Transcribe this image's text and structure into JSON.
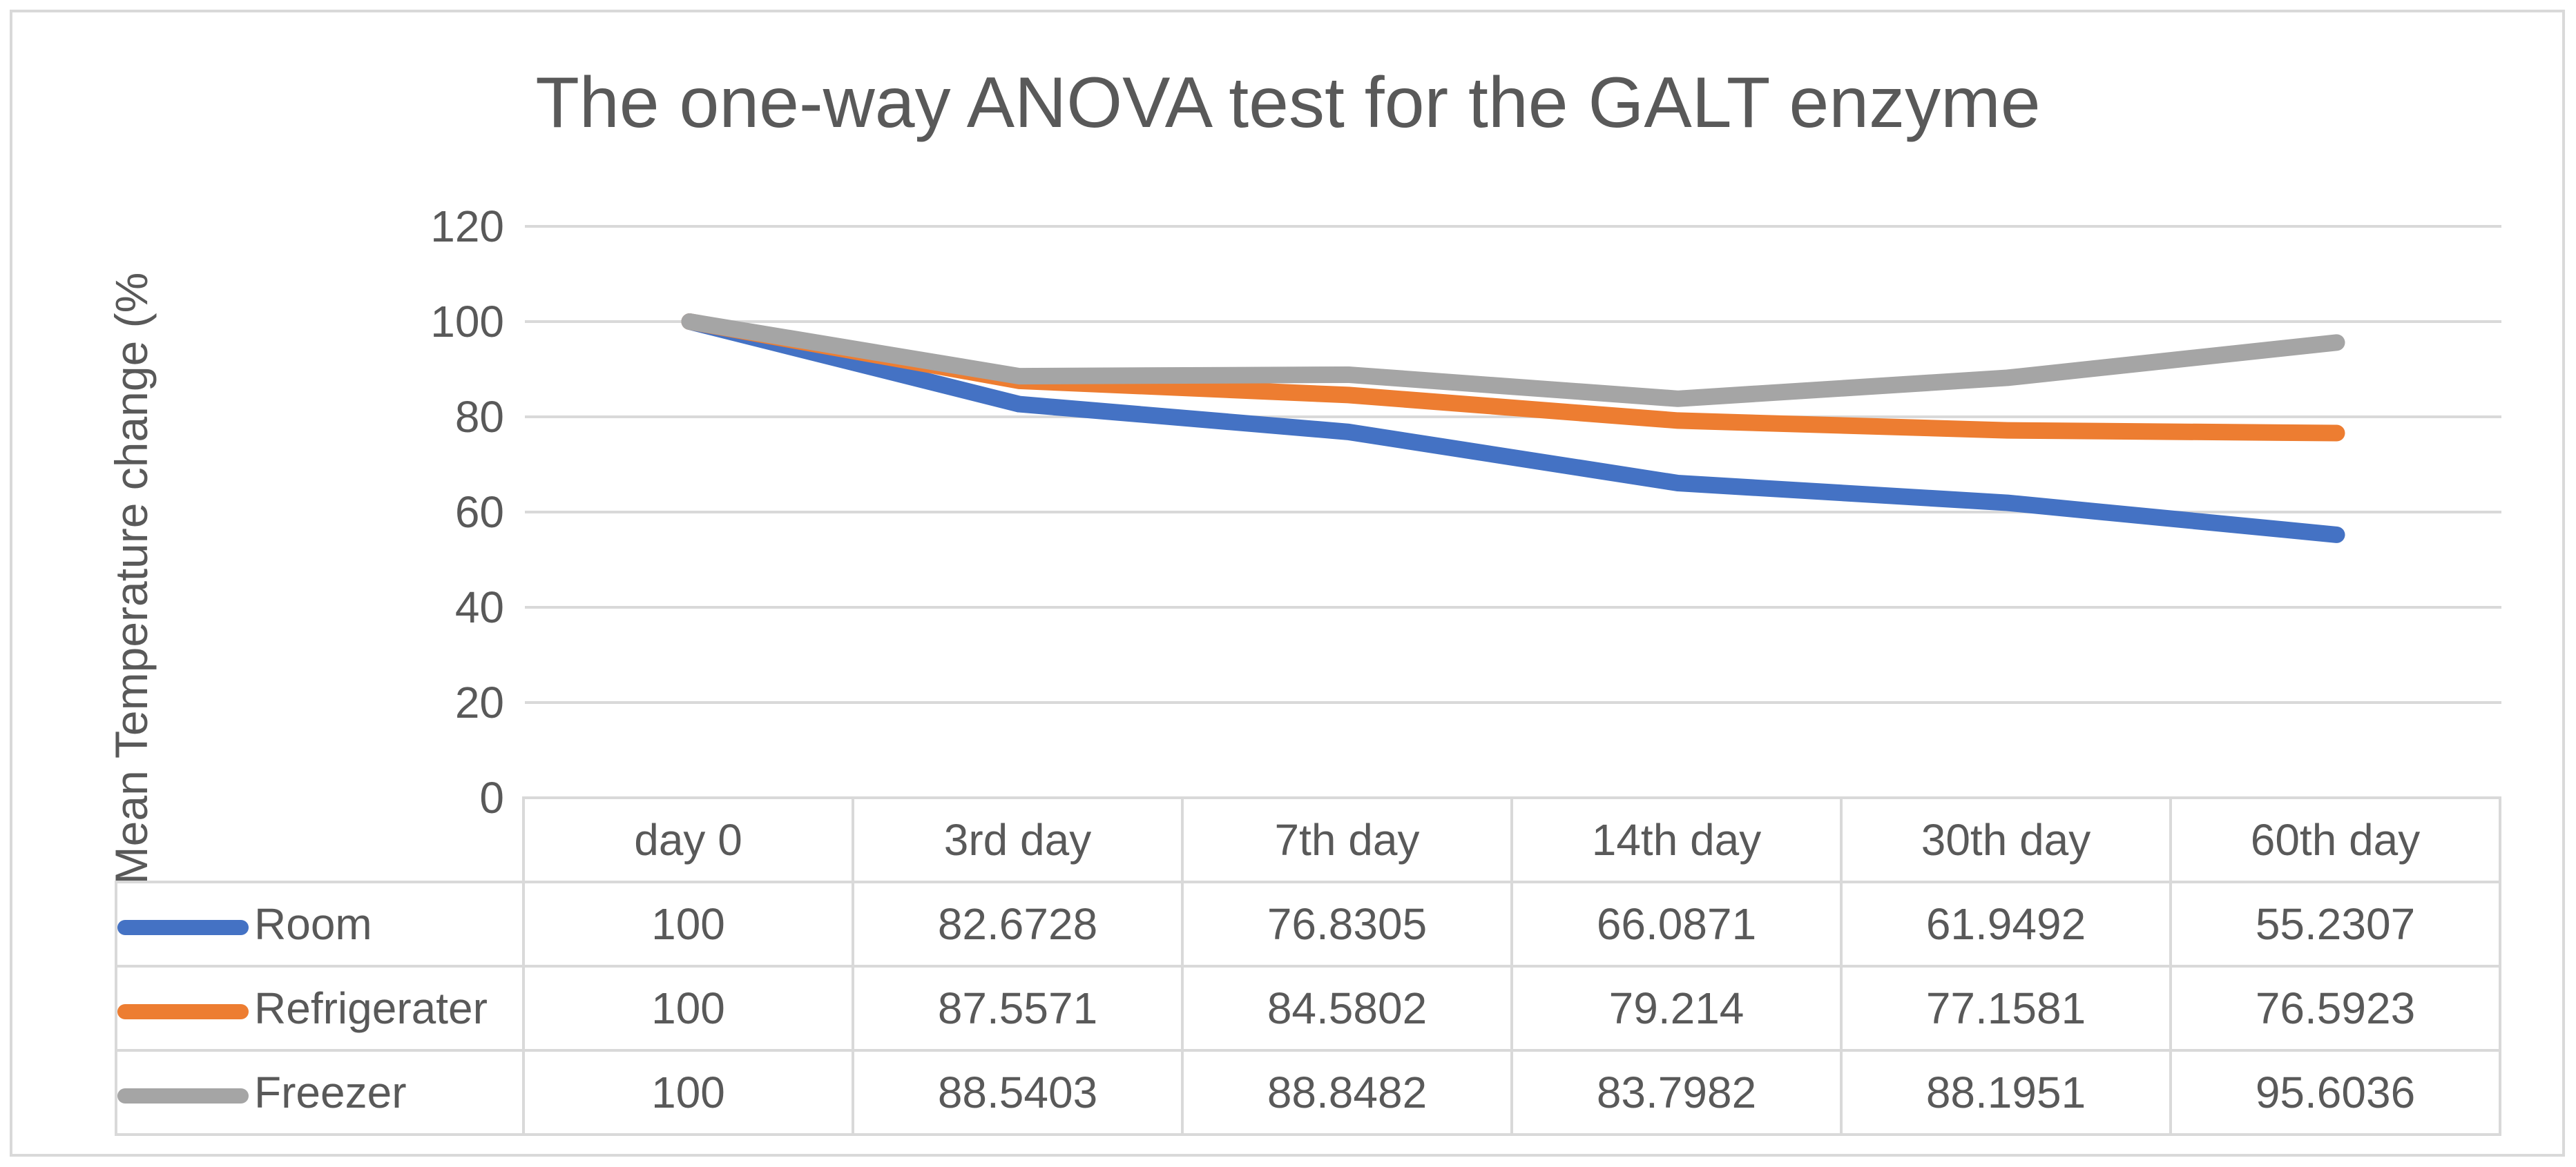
{
  "chart_data": {
    "type": "line",
    "title": "The one-way ANOVA test for the GALT enzyme",
    "xlabel": "",
    "ylabel": "Mean Temperature change (%",
    "ylim": [
      0,
      120
    ],
    "yticks": [
      0,
      20,
      40,
      60,
      80,
      100,
      120
    ],
    "grid": true,
    "legend": "data-table",
    "categories": [
      "day 0",
      "3rd day",
      "7th day",
      "14th day",
      "30th day",
      "60th day"
    ],
    "series": [
      {
        "name": "Room",
        "color": "#4472c4",
        "values": [
          100,
          82.6728,
          76.8305,
          66.0871,
          61.9492,
          55.2307
        ]
      },
      {
        "name": "Refrigerater",
        "color": "#ed7d31",
        "values": [
          100,
          87.5571,
          84.5802,
          79.214,
          77.1581,
          76.5923
        ]
      },
      {
        "name": "Freezer",
        "color": "#a5a5a5",
        "values": [
          100,
          88.5403,
          88.8482,
          83.7982,
          88.1951,
          95.6036
        ]
      }
    ]
  }
}
